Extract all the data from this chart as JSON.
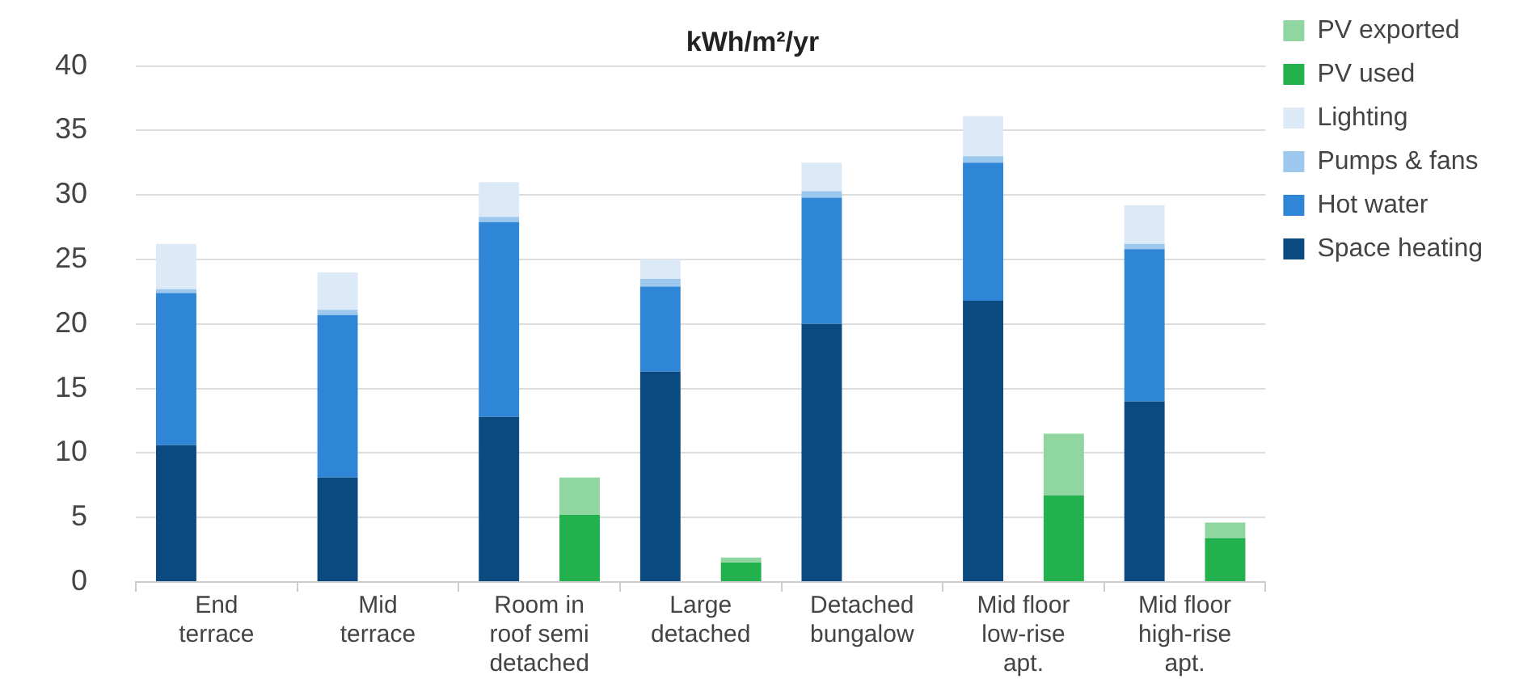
{
  "chart_data": {
    "type": "bar",
    "title": "kWh/m²/yr",
    "categories": [
      "End terrace",
      "Mid terrace",
      "Room in roof semi detached",
      "Large detached",
      "Detached bungalow",
      "Mid floor low-rise apt.",
      "Mid floor high-rise apt."
    ],
    "series": [
      {
        "name": "Space heating",
        "color": "#0b4a80",
        "base": [
          0,
          0,
          0,
          0,
          0,
          0,
          0
        ],
        "values": [
          10.6,
          8.1,
          12.8,
          16.3,
          20.0,
          21.8,
          14.0
        ]
      },
      {
        "name": "Hot water",
        "color": "#2f86d6",
        "base": [
          10.6,
          8.1,
          12.8,
          16.3,
          20.0,
          21.8,
          14.0
        ],
        "values": [
          11.8,
          12.6,
          15.1,
          6.6,
          9.8,
          10.7,
          11.8
        ]
      },
      {
        "name": "Pumps & fans",
        "color": "#9cc8ee",
        "base": [
          22.4,
          20.7,
          27.9,
          22.9,
          29.8,
          32.5,
          25.8
        ],
        "values": [
          0.3,
          0.4,
          0.4,
          0.6,
          0.5,
          0.5,
          0.4
        ]
      },
      {
        "name": "Lighting",
        "color": "#dce9f7",
        "base": [
          22.7,
          21.1,
          28.3,
          23.5,
          30.3,
          33.0,
          26.2
        ],
        "values": [
          3.5,
          2.9,
          2.7,
          1.5,
          2.2,
          3.1,
          3.0
        ]
      },
      {
        "name": "PV used",
        "color": "#22b14c",
        "base": [
          null,
          null,
          0,
          0,
          null,
          0,
          0
        ],
        "values": [
          null,
          null,
          5.2,
          1.5,
          null,
          6.7,
          3.4
        ]
      },
      {
        "name": "PV exported",
        "color": "#8fd6a0",
        "base": [
          null,
          null,
          5.2,
          1.5,
          null,
          6.7,
          3.4
        ],
        "values": [
          null,
          null,
          2.9,
          0.4,
          null,
          4.8,
          1.2
        ]
      }
    ],
    "ylim": [
      0,
      40
    ],
    "yticks": [
      0,
      5,
      10,
      15,
      20,
      25,
      30,
      35,
      40
    ],
    "grid": "y",
    "legend": "top right"
  }
}
